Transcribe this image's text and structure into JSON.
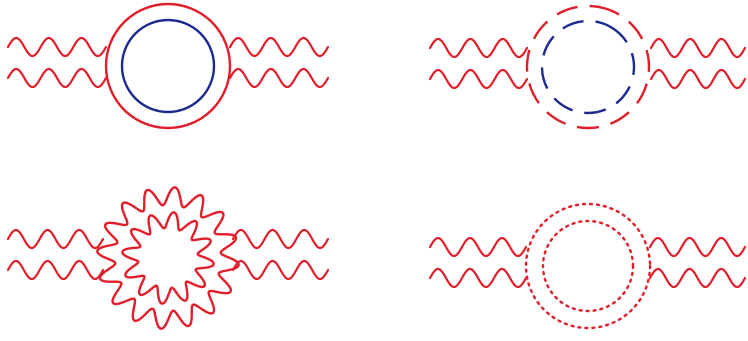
{
  "colors": {
    "red": "#e01f2a",
    "blue": "#1f2a8f",
    "background": "#ffffff"
  },
  "diagrams": [
    {
      "key": "solid-loops",
      "outer_loop": {
        "style": "solid",
        "color": "red"
      },
      "inner_loop": {
        "style": "solid",
        "color": "blue"
      }
    },
    {
      "key": "dashed-loops",
      "outer_loop": {
        "style": "dashed",
        "color": "red"
      },
      "inner_loop": {
        "style": "dashed",
        "color": "blue"
      }
    },
    {
      "key": "wavy-loops",
      "outer_loop": {
        "style": "wavy",
        "color": "red"
      },
      "inner_loop": {
        "style": "wavy",
        "color": "red"
      }
    },
    {
      "key": "dotted-loops",
      "outer_loop": {
        "style": "dotted",
        "color": "red"
      },
      "inner_loop": {
        "style": "dotted",
        "color": "red"
      }
    }
  ]
}
